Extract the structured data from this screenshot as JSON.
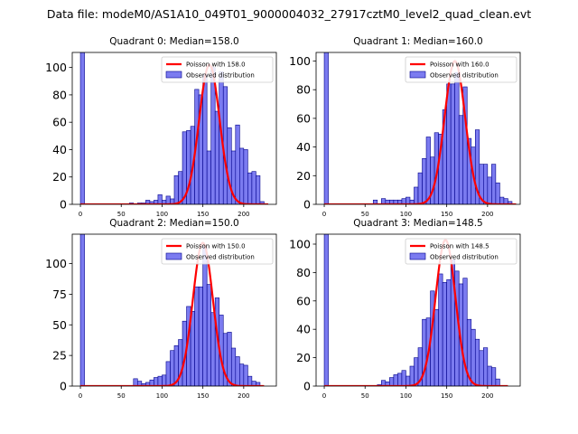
{
  "figure_title": "Data file: modeM0/AS1A10_049T01_9000004032_27917cztM0_level2_quad_clean.evt",
  "colors": {
    "bar_fill": "#7b7bf0",
    "bar_edge": "#00008b",
    "fit_line": "#ff0000"
  },
  "chart_data": [
    {
      "type": "bar",
      "title": "Quadrant 0: Median=158.0",
      "legend": [
        "Poisson with 158.0",
        "Observed distribution"
      ],
      "legend_position": "upper-right",
      "xlim": [
        -10,
        240
      ],
      "ylim": [
        0,
        111
      ],
      "xticks": [
        0,
        50,
        100,
        150,
        200
      ],
      "yticks": [
        0,
        20,
        40,
        60,
        80,
        100
      ],
      "bin_width": 5,
      "bins": [
        [
          0,
          120
        ],
        [
          60,
          1
        ],
        [
          70,
          1
        ],
        [
          75,
          1
        ],
        [
          80,
          3
        ],
        [
          85,
          2
        ],
        [
          90,
          3
        ],
        [
          95,
          7
        ],
        [
          100,
          3
        ],
        [
          105,
          6
        ],
        [
          110,
          4
        ],
        [
          115,
          21
        ],
        [
          120,
          24
        ],
        [
          125,
          53
        ],
        [
          130,
          54
        ],
        [
          135,
          57
        ],
        [
          140,
          84
        ],
        [
          145,
          80
        ],
        [
          150,
          95
        ],
        [
          155,
          39
        ],
        [
          160,
          100
        ],
        [
          165,
          68
        ],
        [
          170,
          97
        ],
        [
          175,
          86
        ],
        [
          180,
          56
        ],
        [
          185,
          39
        ],
        [
          190,
          58
        ],
        [
          195,
          41
        ],
        [
          200,
          40
        ],
        [
          205,
          23
        ],
        [
          210,
          24
        ],
        [
          215,
          21
        ],
        [
          220,
          2
        ]
      ],
      "poisson_mean": 158.0,
      "poisson_peak": 102,
      "poisson_x_range": [
        0,
        230
      ]
    },
    {
      "type": "bar",
      "title": "Quadrant 1: Median=160.0",
      "legend": [
        "Poisson with 160.0",
        "Observed distribution"
      ],
      "legend_position": "upper-right",
      "xlim": [
        -10,
        240
      ],
      "ylim": [
        0,
        106
      ],
      "xticks": [
        0,
        50,
        100,
        150,
        200
      ],
      "yticks": [
        0,
        20,
        40,
        60,
        80,
        100
      ],
      "bin_width": 5,
      "bins": [
        [
          0,
          120
        ],
        [
          60,
          3
        ],
        [
          70,
          4
        ],
        [
          75,
          3
        ],
        [
          80,
          3
        ],
        [
          85,
          3
        ],
        [
          90,
          3
        ],
        [
          95,
          4
        ],
        [
          100,
          5
        ],
        [
          105,
          3
        ],
        [
          110,
          12
        ],
        [
          115,
          22
        ],
        [
          120,
          32
        ],
        [
          125,
          47
        ],
        [
          130,
          33
        ],
        [
          135,
          50
        ],
        [
          140,
          49
        ],
        [
          145,
          66
        ],
        [
          150,
          84
        ],
        [
          155,
          84
        ],
        [
          160,
          92
        ],
        [
          165,
          62
        ],
        [
          170,
          82
        ],
        [
          175,
          46
        ],
        [
          180,
          40
        ],
        [
          185,
          52
        ],
        [
          190,
          28
        ],
        [
          195,
          28
        ],
        [
          200,
          19
        ],
        [
          205,
          28
        ],
        [
          210,
          15
        ],
        [
          215,
          5
        ],
        [
          220,
          4
        ],
        [
          225,
          2
        ]
      ],
      "poisson_mean": 160.0,
      "poisson_peak": 100,
      "poisson_x_range": [
        0,
        235
      ]
    },
    {
      "type": "bar",
      "title": "Quadrant 2: Median=150.0",
      "legend": [
        "Poisson with 150.0",
        "Observed distribution"
      ],
      "legend_position": "upper-right",
      "xlim": [
        -10,
        240
      ],
      "ylim": [
        0,
        124
      ],
      "xticks": [
        0,
        50,
        100,
        150,
        200
      ],
      "yticks": [
        0,
        25,
        50,
        75,
        100
      ],
      "bin_width": 5,
      "bins": [
        [
          0,
          130
        ],
        [
          65,
          6
        ],
        [
          70,
          4
        ],
        [
          75,
          2
        ],
        [
          80,
          3
        ],
        [
          85,
          5
        ],
        [
          90,
          7
        ],
        [
          95,
          8
        ],
        [
          100,
          9
        ],
        [
          105,
          20
        ],
        [
          110,
          29
        ],
        [
          115,
          33
        ],
        [
          120,
          38
        ],
        [
          125,
          53
        ],
        [
          130,
          65
        ],
        [
          135,
          61
        ],
        [
          140,
          81
        ],
        [
          145,
          81
        ],
        [
          150,
          114
        ],
        [
          155,
          83
        ],
        [
          160,
          60
        ],
        [
          165,
          72
        ],
        [
          170,
          58
        ],
        [
          175,
          43
        ],
        [
          180,
          44
        ],
        [
          185,
          31
        ],
        [
          190,
          24
        ],
        [
          195,
          18
        ],
        [
          200,
          17
        ],
        [
          205,
          8
        ],
        [
          210,
          4
        ],
        [
          215,
          3
        ]
      ],
      "poisson_mean": 150.0,
      "poisson_peak": 117,
      "poisson_x_range": [
        0,
        225
      ]
    },
    {
      "type": "bar",
      "title": "Quadrant 3: Median=148.5",
      "legend": [
        "Poisson with 148.5",
        "Observed distribution"
      ],
      "legend_position": "upper-right",
      "xlim": [
        -10,
        240
      ],
      "ylim": [
        0,
        107
      ],
      "xticks": [
        0,
        50,
        100,
        150,
        200
      ],
      "yticks": [
        0,
        20,
        40,
        60,
        80,
        100
      ],
      "bin_width": 5,
      "bins": [
        [
          0,
          120
        ],
        [
          65,
          1
        ],
        [
          70,
          4
        ],
        [
          75,
          3
        ],
        [
          80,
          6
        ],
        [
          85,
          8
        ],
        [
          90,
          9
        ],
        [
          95,
          11
        ],
        [
          100,
          7
        ],
        [
          105,
          14
        ],
        [
          110,
          20
        ],
        [
          115,
          27
        ],
        [
          120,
          47
        ],
        [
          125,
          48
        ],
        [
          130,
          67
        ],
        [
          135,
          54
        ],
        [
          140,
          79
        ],
        [
          145,
          73
        ],
        [
          150,
          75
        ],
        [
          155,
          89
        ],
        [
          160,
          81
        ],
        [
          165,
          72
        ],
        [
          170,
          76
        ],
        [
          175,
          47
        ],
        [
          180,
          40
        ],
        [
          185,
          33
        ],
        [
          190,
          25
        ],
        [
          195,
          27
        ],
        [
          200,
          14
        ],
        [
          205,
          13
        ],
        [
          210,
          5
        ]
      ],
      "poisson_mean": 148.5,
      "poisson_peak": 103,
      "poisson_x_range": [
        0,
        225
      ]
    }
  ]
}
